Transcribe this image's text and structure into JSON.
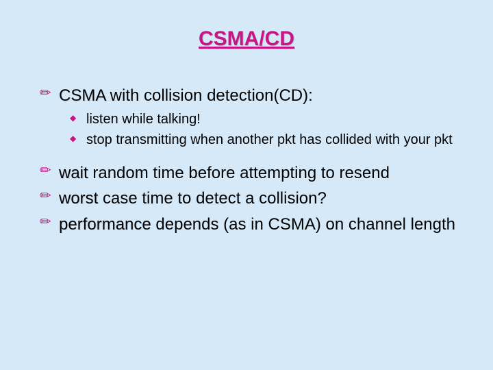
{
  "colors": {
    "background": "#d6e9f8",
    "title": "#c71585",
    "bullet_marker": "#c71585",
    "sub_marker": "#c71585",
    "body_text": "#000000"
  },
  "typography": {
    "title_fontsize": 30,
    "title_weight": "bold",
    "main_fontsize": 24,
    "sub_fontsize": 20,
    "line_height": 1.3,
    "font_family": "Arial, Helvetica, sans-serif"
  },
  "title": "CSMA/CD",
  "bullets": [
    {
      "first": "CSMA",
      "rest": " with collision detection(CD):",
      "subs": [
        "listen while talking!",
        "stop transmitting when another pkt has collided with your pkt"
      ]
    },
    {
      "first": "wait",
      "rest": " random time before attempting to resend",
      "subs": []
    },
    {
      "first": "worst",
      "rest": " case time to detect a collision?",
      "subs": []
    },
    {
      "first": "performance",
      "rest": " depends (as in CSMA) on channel length",
      "subs": []
    }
  ],
  "markers": {
    "main": "✏",
    "sub": "◆"
  }
}
